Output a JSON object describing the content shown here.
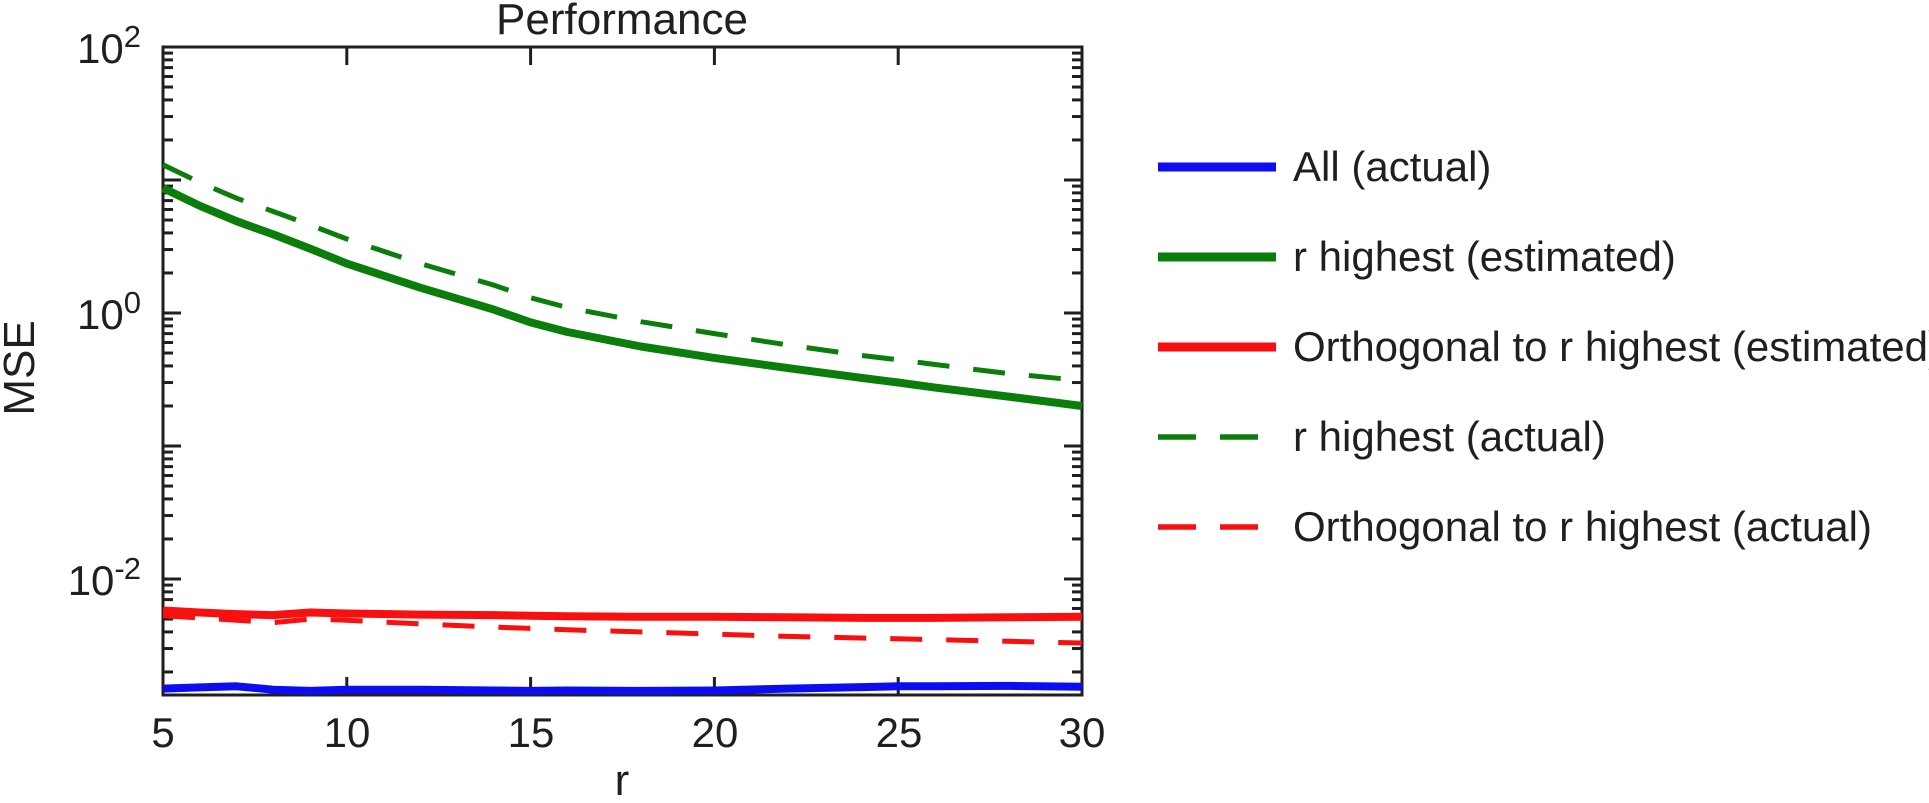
{
  "chart_data": {
    "type": "line",
    "title": "Performance",
    "xlabel": "r",
    "ylabel": "MSE",
    "grid": false,
    "legend_position": "outside-right",
    "axis_color": "#1f1f1f",
    "x_axis": {
      "min": 5,
      "max": 30,
      "ticks": [
        5,
        10,
        15,
        20,
        25,
        30
      ],
      "tick_labels": [
        "5",
        "10",
        "15",
        "20",
        "25",
        "30"
      ]
    },
    "y_axis": {
      "scale": "log",
      "min": 0.00134,
      "max": 100,
      "labeled_tick_exponents": [
        2,
        0,
        -2
      ],
      "tick_labels": [
        {
          "base": "10",
          "exp": "2"
        },
        {
          "base": "10",
          "exp": "0"
        },
        {
          "base": "10",
          "exp": "-2"
        }
      ]
    },
    "x": [
      5,
      6,
      7,
      8,
      9,
      10,
      12,
      14,
      15,
      16,
      18,
      20,
      22,
      24,
      25,
      26,
      28,
      30
    ],
    "series": [
      {
        "name": "All (actual)",
        "color": "#0d0df2",
        "line_style": "solid",
        "values": [
          0.0015,
          0.00153,
          0.00156,
          0.00147,
          0.00144,
          0.00147,
          0.00147,
          0.00145,
          0.00144,
          0.00145,
          0.00144,
          0.00145,
          0.0015,
          0.00154,
          0.00156,
          0.00156,
          0.00157,
          0.00155
        ]
      },
      {
        "name": "r highest (estimated)",
        "color": "#0a7d0a",
        "line_style": "solid",
        "values": [
          8.7,
          6.4,
          4.9,
          3.9,
          3.05,
          2.35,
          1.55,
          1.06,
          0.85,
          0.72,
          0.56,
          0.46,
          0.385,
          0.325,
          0.3,
          0.275,
          0.235,
          0.2
        ]
      },
      {
        "name": "Orthogonal to r highest (estimated)",
        "color": "#f80f0f",
        "line_style": "solid",
        "values": [
          0.0058,
          0.0056,
          0.00545,
          0.00535,
          0.0056,
          0.0055,
          0.0054,
          0.00535,
          0.0053,
          0.00525,
          0.0052,
          0.0052,
          0.00515,
          0.0051,
          0.0051,
          0.0051,
          0.00515,
          0.0052
        ]
      },
      {
        "name": "r highest (actual)",
        "color": "#0a7d0a",
        "line_style": "dashed",
        "values": [
          13.0,
          9.6,
          7.3,
          5.8,
          4.6,
          3.6,
          2.35,
          1.62,
          1.3,
          1.1,
          0.86,
          0.7,
          0.575,
          0.48,
          0.445,
          0.41,
          0.35,
          0.31
        ]
      },
      {
        "name": "Orthogonal to r highest (actual)",
        "color": "#f80f0f",
        "line_style": "dashed",
        "values": [
          0.0053,
          0.0051,
          0.0049,
          0.0047,
          0.005,
          0.0049,
          0.0046,
          0.00435,
          0.00425,
          0.00415,
          0.004,
          0.00385,
          0.0037,
          0.0036,
          0.00355,
          0.0035,
          0.0034,
          0.0033
        ]
      }
    ]
  }
}
